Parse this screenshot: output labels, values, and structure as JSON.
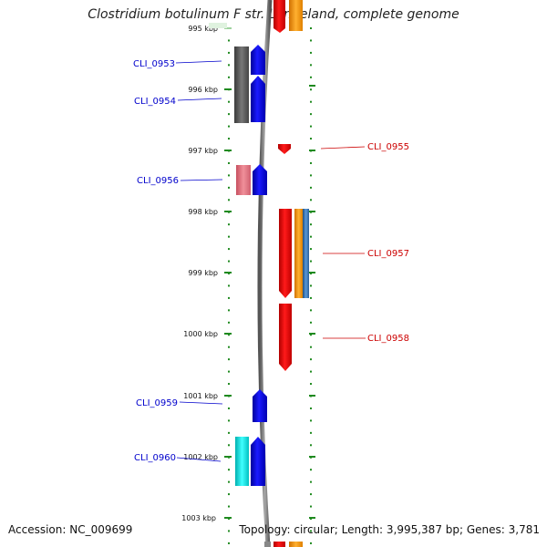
{
  "title": "Clostridium botulinum F str. Langeland, complete genome",
  "footer": {
    "accession": "Accession: NC_009699",
    "topology": "Topology: circular; Length: 3,995,387 bp; Genes: 3,781"
  },
  "ticks": [
    "995 kbp",
    "996 kbp",
    "997 kbp",
    "998 kbp",
    "999 kbp",
    "1000 kbp",
    "1001 kbp",
    "1002 kbp",
    "1003 kbp"
  ],
  "genes": [
    {
      "label": "CLI_0953",
      "side": "left",
      "color": "#0000cc"
    },
    {
      "label": "CLI_0954",
      "side": "left",
      "color": "#0000cc"
    },
    {
      "label": "CLI_0955",
      "side": "right",
      "color": "#cc0000"
    },
    {
      "label": "CLI_0956",
      "side": "left",
      "color": "#0000cc"
    },
    {
      "label": "CLI_0957",
      "side": "right",
      "color": "#cc0000"
    },
    {
      "label": "CLI_0958",
      "side": "right",
      "color": "#cc0000"
    },
    {
      "label": "CLI_0959",
      "side": "left",
      "color": "#0000cc"
    },
    {
      "label": "CLI_0960",
      "side": "left",
      "color": "#0000cc"
    }
  ],
  "colors": {
    "reverse_cds": "#1a1aff",
    "forward_cds": "#ff1a1a",
    "gray_feature": "#606060",
    "pink_feature": "#e07a80",
    "cyan_feature": "#00e0e0",
    "orange_feature": "#ff9900",
    "steel_feature": "#3a78b8",
    "ruler": "#1f8a1f"
  }
}
